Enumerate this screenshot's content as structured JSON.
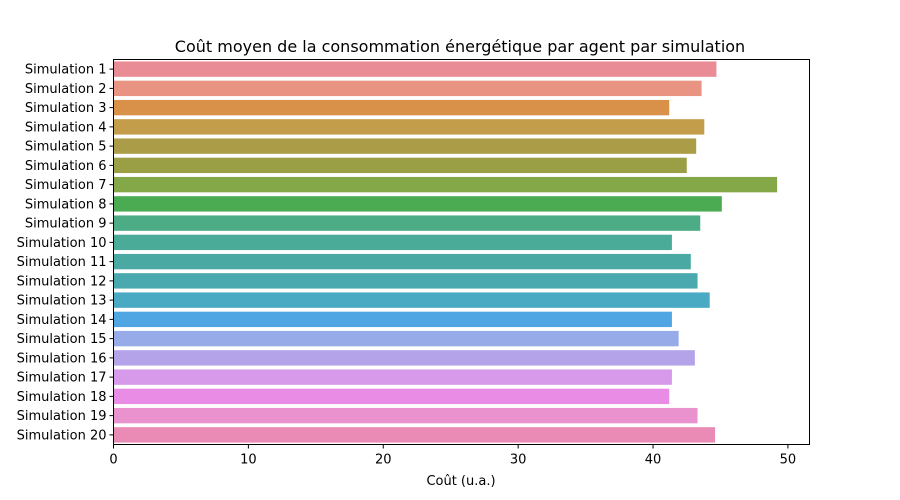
{
  "chart_data": {
    "type": "bar",
    "orientation": "horizontal",
    "title": "Coût moyen de la consommation énergétique par agent par simulation",
    "xlabel": "Coût (u.a.)",
    "ylabel": "",
    "xlim": [
      0,
      51.6
    ],
    "xticks": [
      0,
      10,
      20,
      30,
      40,
      50
    ],
    "grid": false,
    "categories": [
      "Simulation 1",
      "Simulation 2",
      "Simulation 3",
      "Simulation 4",
      "Simulation 5",
      "Simulation 6",
      "Simulation 7",
      "Simulation 8",
      "Simulation 9",
      "Simulation 10",
      "Simulation 11",
      "Simulation 12",
      "Simulation 13",
      "Simulation 14",
      "Simulation 15",
      "Simulation 16",
      "Simulation 17",
      "Simulation 18",
      "Simulation 19",
      "Simulation 20"
    ],
    "values": [
      44.7,
      43.6,
      41.2,
      43.8,
      43.2,
      42.5,
      49.2,
      45.1,
      43.5,
      41.4,
      42.8,
      43.3,
      44.2,
      41.4,
      41.9,
      43.1,
      41.4,
      41.2,
      43.3,
      44.6
    ],
    "colors": [
      "#ea8c95",
      "#e99383",
      "#d9914a",
      "#c49d4a",
      "#ab9d48",
      "#9a9f46",
      "#84a847",
      "#4aab53",
      "#4bac86",
      "#4aab98",
      "#4aaaa3",
      "#49a9ae",
      "#4aaac4",
      "#4fa6e3",
      "#96abe7",
      "#b5a3ea",
      "#d799ea",
      "#e88ce6",
      "#e992cd",
      "#e98bb4"
    ]
  }
}
